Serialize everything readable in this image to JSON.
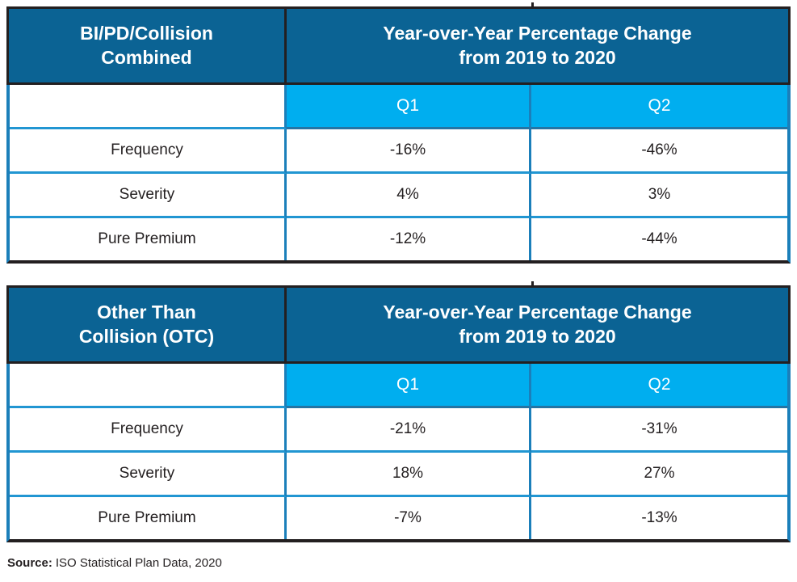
{
  "colors": {
    "header_bg": "#0B6394",
    "subheader_bg": "#00AEEF",
    "header_text": "#FFFFFF",
    "body_text": "#231F20",
    "dark_border": "#231F20",
    "blue_border": "#1B7FBA",
    "row_divider": "#2196D2"
  },
  "chart_data": [
    {
      "type": "table",
      "title": "BI/PD/Collision Combined",
      "title_lines": [
        "BI/PD/Collision",
        "Combined"
      ],
      "header": "Year-over-Year Percentage Change from 2019 to 2020",
      "header_lines": [
        "Year-over-Year Percentage Change",
        "from 2019 to 2020"
      ],
      "columns": [
        "Q1",
        "Q2"
      ],
      "rows": [
        {
          "label": "Frequency",
          "q1": "-16%",
          "q2": "-46%"
        },
        {
          "label": "Severity",
          "q1": "4%",
          "q2": "3%"
        },
        {
          "label": "Pure Premium",
          "q1": "-12%",
          "q2": "-44%"
        }
      ]
    },
    {
      "type": "table",
      "title": "Other Than Collision (OTC)",
      "title_lines": [
        "Other Than",
        "Collision (OTC)"
      ],
      "header": "Year-over-Year Percentage Change from 2019 to 2020",
      "header_lines": [
        "Year-over-Year Percentage Change",
        "from 2019 to 2020"
      ],
      "columns": [
        "Q1",
        "Q2"
      ],
      "rows": [
        {
          "label": "Frequency",
          "q1": "-21%",
          "q2": "-31%"
        },
        {
          "label": "Severity",
          "q1": "18%",
          "q2": "27%"
        },
        {
          "label": "Pure Premium",
          "q1": "-7%",
          "q2": "-13%"
        }
      ]
    }
  ],
  "source_line": {
    "label": "Source:",
    "text": "ISO Statistical Plan Data, 2020"
  }
}
